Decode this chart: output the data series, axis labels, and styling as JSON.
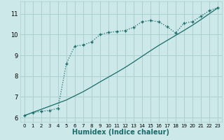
{
  "xlabel": "Humidex (Indice chaleur)",
  "background_color": "#cce8e8",
  "grid_color": "#aad0d0",
  "line_color": "#1a6b6b",
  "xlim": [
    -0.5,
    23.5
  ],
  "ylim": [
    5.8,
    11.6
  ],
  "xticks": [
    0,
    1,
    2,
    3,
    4,
    5,
    6,
    7,
    8,
    9,
    10,
    11,
    12,
    13,
    14,
    15,
    16,
    17,
    18,
    19,
    20,
    21,
    22,
    23
  ],
  "yticks": [
    6,
    7,
    8,
    9,
    10,
    11
  ],
  "curve1_x": [
    0,
    1,
    2,
    3,
    4,
    5,
    6,
    7,
    8,
    9,
    10,
    11,
    12,
    13,
    14,
    15,
    16,
    17,
    18,
    19,
    20,
    21,
    22,
    23
  ],
  "curve1_y": [
    6.1,
    6.25,
    6.3,
    6.35,
    6.45,
    8.6,
    9.45,
    9.5,
    9.65,
    10.0,
    10.1,
    10.15,
    10.2,
    10.35,
    10.62,
    10.68,
    10.62,
    10.38,
    10.08,
    10.55,
    10.62,
    10.88,
    11.15,
    11.3
  ],
  "curve2_x": [
    0,
    1,
    2,
    3,
    4,
    5,
    6,
    7,
    8,
    9,
    10,
    11,
    12,
    13,
    14,
    15,
    16,
    17,
    18,
    19,
    20,
    21,
    22,
    23
  ],
  "curve2_y": [
    6.1,
    6.25,
    6.4,
    6.55,
    6.7,
    6.85,
    7.05,
    7.25,
    7.48,
    7.72,
    7.95,
    8.18,
    8.42,
    8.68,
    8.95,
    9.22,
    9.48,
    9.72,
    9.96,
    10.2,
    10.45,
    10.72,
    11.0,
    11.28
  ]
}
